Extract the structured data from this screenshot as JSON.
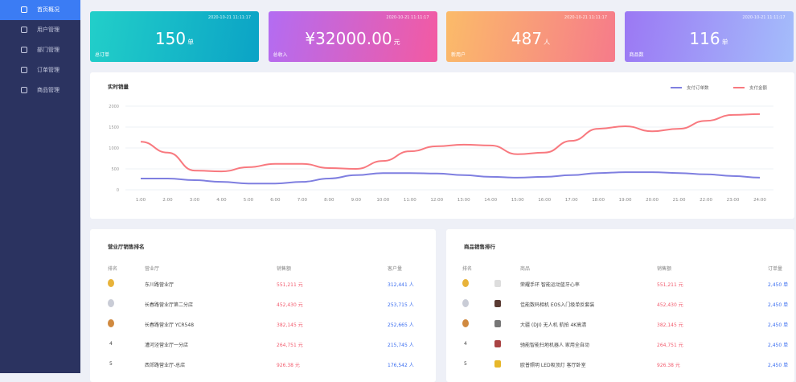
{
  "sidebar": [
    "首页概况",
    "用户管理",
    "部门管理",
    "订单管理",
    "商品管理"
  ],
  "stats": [
    {
      "date": "2020-10-21 11:11:17",
      "value": "150",
      "unit": "单",
      "label": "总订单"
    },
    {
      "date": "2020-10-21 11:11:17",
      "value": "¥32000.00",
      "unit": "元",
      "label": "总收入"
    },
    {
      "date": "2020-10-21 11:11:17",
      "value": "487",
      "unit": "人",
      "label": "新用户"
    },
    {
      "date": "2020-10-21 11:11:17",
      "value": "116",
      "unit": "单",
      "label": "商品数"
    }
  ],
  "chart_data": {
    "type": "line",
    "title": "实时销量",
    "x": [
      "1:00",
      "2:00",
      "3:00",
      "4:00",
      "5:00",
      "6:00",
      "7:00",
      "8:00",
      "9:00",
      "10:00",
      "11:00",
      "12:00",
      "13:00",
      "14:00",
      "15:00",
      "16:00",
      "17:00",
      "18:00",
      "19:00",
      "20:00",
      "21:00",
      "22:00",
      "23:00",
      "24:00"
    ],
    "series": [
      {
        "name": "支付订单数",
        "color": "#7f7fe0",
        "values": [
          270,
          270,
          230,
          190,
          150,
          150,
          190,
          270,
          350,
          400,
          400,
          390,
          350,
          310,
          290,
          310,
          350,
          400,
          420,
          420,
          400,
          370,
          330,
          290
        ]
      },
      {
        "name": "支付金额",
        "color": "#f8797f",
        "values": [
          1150,
          890,
          460,
          440,
          540,
          620,
          620,
          520,
          500,
          690,
          920,
          1040,
          1080,
          1060,
          850,
          890,
          1170,
          1460,
          1520,
          1400,
          1460,
          1650,
          1790,
          1810
        ]
      }
    ],
    "ylim": [
      0,
      2000
    ],
    "yticks": [
      0,
      500,
      1000,
      1500,
      2000
    ],
    "grid": true,
    "legend": "top-right"
  },
  "tables": [
    {
      "title": "营业厅销售排名",
      "columns": [
        "排名",
        "营业厅",
        "销售额",
        "客户量"
      ],
      "rows": [
        {
          "name": "东川路营业厅",
          "sales": "551,211 元",
          "count": "312,441 人"
        },
        {
          "name": "长春路营业厅第二分店",
          "sales": "452,430 元",
          "count": "253,715 人"
        },
        {
          "name": "长春路营业厅 YCR548",
          "sales": "382,145 元",
          "count": "252,665 人"
        },
        {
          "rank": "4",
          "name": "漕河泾营业厅一分店",
          "sales": "264,751 元",
          "count": "215,745 人"
        },
        {
          "rank": "5",
          "name": "西郊路营业厅-总店",
          "sales": "926.38 元",
          "count": "176,542 人"
        }
      ]
    },
    {
      "title": "商品销售排行",
      "columns": [
        "排名",
        "商品",
        "销售额",
        "订单量"
      ],
      "rows": [
        {
          "name": "荣耀手环 智能运动蓝牙心率",
          "sales": "551,211 元",
          "count": "2,450 单"
        },
        {
          "name": "佳能数码相机 EOS入门级单反套装",
          "sales": "452,430 元",
          "count": "2,450 单"
        },
        {
          "name": "大疆 (DJI) 无人机 航拍 4K高清",
          "sales": "382,145 元",
          "count": "2,450 单"
        },
        {
          "rank": "4",
          "name": "驰能智能扫地机器人 家用全自动",
          "sales": "264,751 元",
          "count": "2,450 单"
        },
        {
          "rank": "5",
          "name": "欧普照明 LED吸顶灯 客厅卧室",
          "sales": "926.38 元",
          "count": "2,450 单"
        }
      ]
    }
  ]
}
